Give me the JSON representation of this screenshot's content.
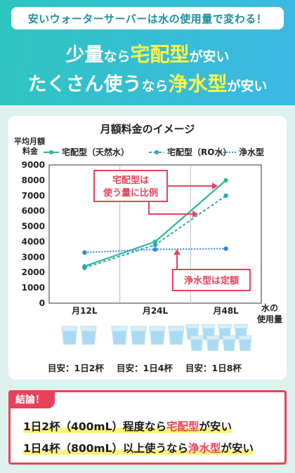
{
  "header": {
    "pill": "安いウォーターサーバーは水の使用量で変わる！",
    "line1": [
      "少量",
      "なら",
      "宅配型",
      "が安い"
    ],
    "line2": [
      "たくさん使う",
      "なら",
      "浄水型",
      "が安い"
    ]
  },
  "chart_data": {
    "type": "line",
    "title": "月額料金のイメージ",
    "ylabel": "平均月額料金",
    "xlabel": "水の使用量",
    "categories": [
      "月12L",
      "月24L",
      "月48L"
    ],
    "ylim": [
      0,
      9000
    ],
    "yticks": [
      0,
      1000,
      2000,
      3000,
      4000,
      5000,
      6000,
      7000,
      8000,
      9000
    ],
    "legend_position": "top",
    "series": [
      {
        "name": "宅配型（天然水）",
        "values": [
          2400,
          4000,
          8000
        ],
        "color": "#2db896",
        "style": "solid"
      },
      {
        "name": "宅配型（RO水）",
        "values": [
          2300,
          3800,
          7000
        ],
        "color": "#2ba5be",
        "style": "dashed"
      },
      {
        "name": "浄水型",
        "values": [
          3300,
          3500,
          3550
        ],
        "color": "#2e86de",
        "style": "dotted"
      }
    ],
    "annotations": [
      "宅配型は\n使う量に比例",
      "浄水型は定額"
    ]
  },
  "cups": {
    "counts": [
      2,
      4,
      8
    ],
    "labels": [
      "目安：1日2杯",
      "目安：1日4杯",
      "目安：1日8杯"
    ]
  },
  "conclusion": {
    "badge": "結論！",
    "line1": [
      "1日2杯（400mL）程度なら",
      "宅配型",
      "が安い"
    ],
    "line2": [
      "1日4杯（800mL）以上使うなら",
      "浄水型",
      "が安い"
    ]
  },
  "colors": {
    "accent_red": "#e8425a",
    "highlight_yellow": "#fff34a",
    "header_teal": "#2ec5bf"
  }
}
